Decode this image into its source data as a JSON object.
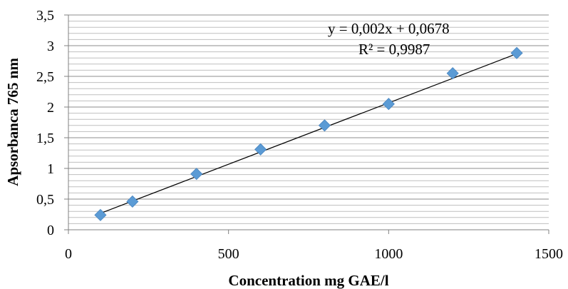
{
  "chart_data": {
    "type": "scatter",
    "xlabel": "Concentration mg GAE/l",
    "ylabel": "Apsorbanca 765 nm",
    "xlim": [
      0,
      1500
    ],
    "ylim": [
      0,
      3.5
    ],
    "x_ticks": [
      "0",
      "500",
      "1000",
      "1500"
    ],
    "y_ticks": [
      "0",
      "0,5",
      "1",
      "1,5",
      "2",
      "2,5",
      "3",
      "3,5"
    ],
    "grid": "horizontal major and minor",
    "legend": "none",
    "marker": "diamond",
    "marker_color": "#5B9BD5",
    "line_color": "#000000",
    "series": [
      {
        "x": [
          100,
          200,
          400,
          600,
          800,
          1000,
          1200,
          1400
        ],
        "y": [
          0.24,
          0.46,
          0.91,
          1.31,
          1.7,
          2.05,
          2.55,
          2.88
        ]
      }
    ],
    "trendline": {
      "type": "linear",
      "slope": 0.002,
      "intercept": 0.0678,
      "equation": "y = 0,002x + 0,0678",
      "r_squared": "R² = 0,9987"
    }
  }
}
